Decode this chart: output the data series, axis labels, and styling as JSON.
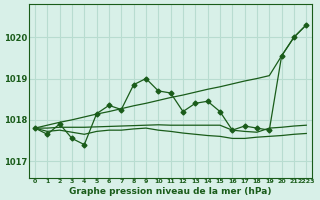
{
  "title": "Graphe pression niveau de la mer (hPa)",
  "background_color": "#d8f0e8",
  "grid_color": "#b8dcd0",
  "line_color": "#1a5c1a",
  "xlim": [
    -0.5,
    22.5
  ],
  "ylim": [
    1016.6,
    1020.8
  ],
  "yticks": [
    1017,
    1018,
    1019,
    1020
  ],
  "xticks": [
    0,
    1,
    2,
    3,
    4,
    5,
    6,
    7,
    8,
    9,
    10,
    11,
    12,
    13,
    14,
    15,
    16,
    17,
    18,
    19,
    20,
    21,
    22
  ],
  "x_labels": [
    "0",
    "1",
    "2",
    "3",
    "4",
    "5",
    "6",
    "7",
    "8",
    "9",
    "10",
    "11",
    "12",
    "13",
    "14",
    "15",
    "16",
    "17",
    "18",
    "19",
    "20",
    "21",
    "2223"
  ],
  "main_y": [
    1017.8,
    1017.65,
    1017.9,
    1017.55,
    1017.4,
    1018.15,
    1018.35,
    1018.25,
    1018.85,
    1019.0,
    1018.7,
    1018.65,
    1018.2,
    1018.4,
    1018.45,
    1018.2,
    1017.75,
    1017.85,
    1017.8,
    1017.75,
    1019.55,
    1020.0,
    1020.3
  ],
  "slope_y": [
    1017.8,
    1017.87,
    1017.94,
    1018.0,
    1018.07,
    1018.14,
    1018.2,
    1018.27,
    1018.34,
    1018.4,
    1018.47,
    1018.54,
    1018.6,
    1018.67,
    1018.74,
    1018.8,
    1018.87,
    1018.94,
    1019.0,
    1019.07,
    1019.55,
    1020.0,
    1020.3
  ],
  "flat_y": [
    1017.8,
    1017.8,
    1017.82,
    1017.82,
    1017.82,
    1017.83,
    1017.84,
    1017.85,
    1017.86,
    1017.87,
    1017.88,
    1017.87,
    1017.87,
    1017.87,
    1017.87,
    1017.87,
    1017.75,
    1017.72,
    1017.7,
    1017.8,
    1017.82,
    1017.85,
    1017.87
  ],
  "flat2_y": [
    1017.8,
    1017.72,
    1017.75,
    1017.7,
    1017.65,
    1017.72,
    1017.75,
    1017.75,
    1017.78,
    1017.8,
    1017.75,
    1017.72,
    1017.68,
    1017.65,
    1017.62,
    1017.6,
    1017.55,
    1017.55,
    1017.58,
    1017.6,
    1017.62,
    1017.65,
    1017.67
  ]
}
